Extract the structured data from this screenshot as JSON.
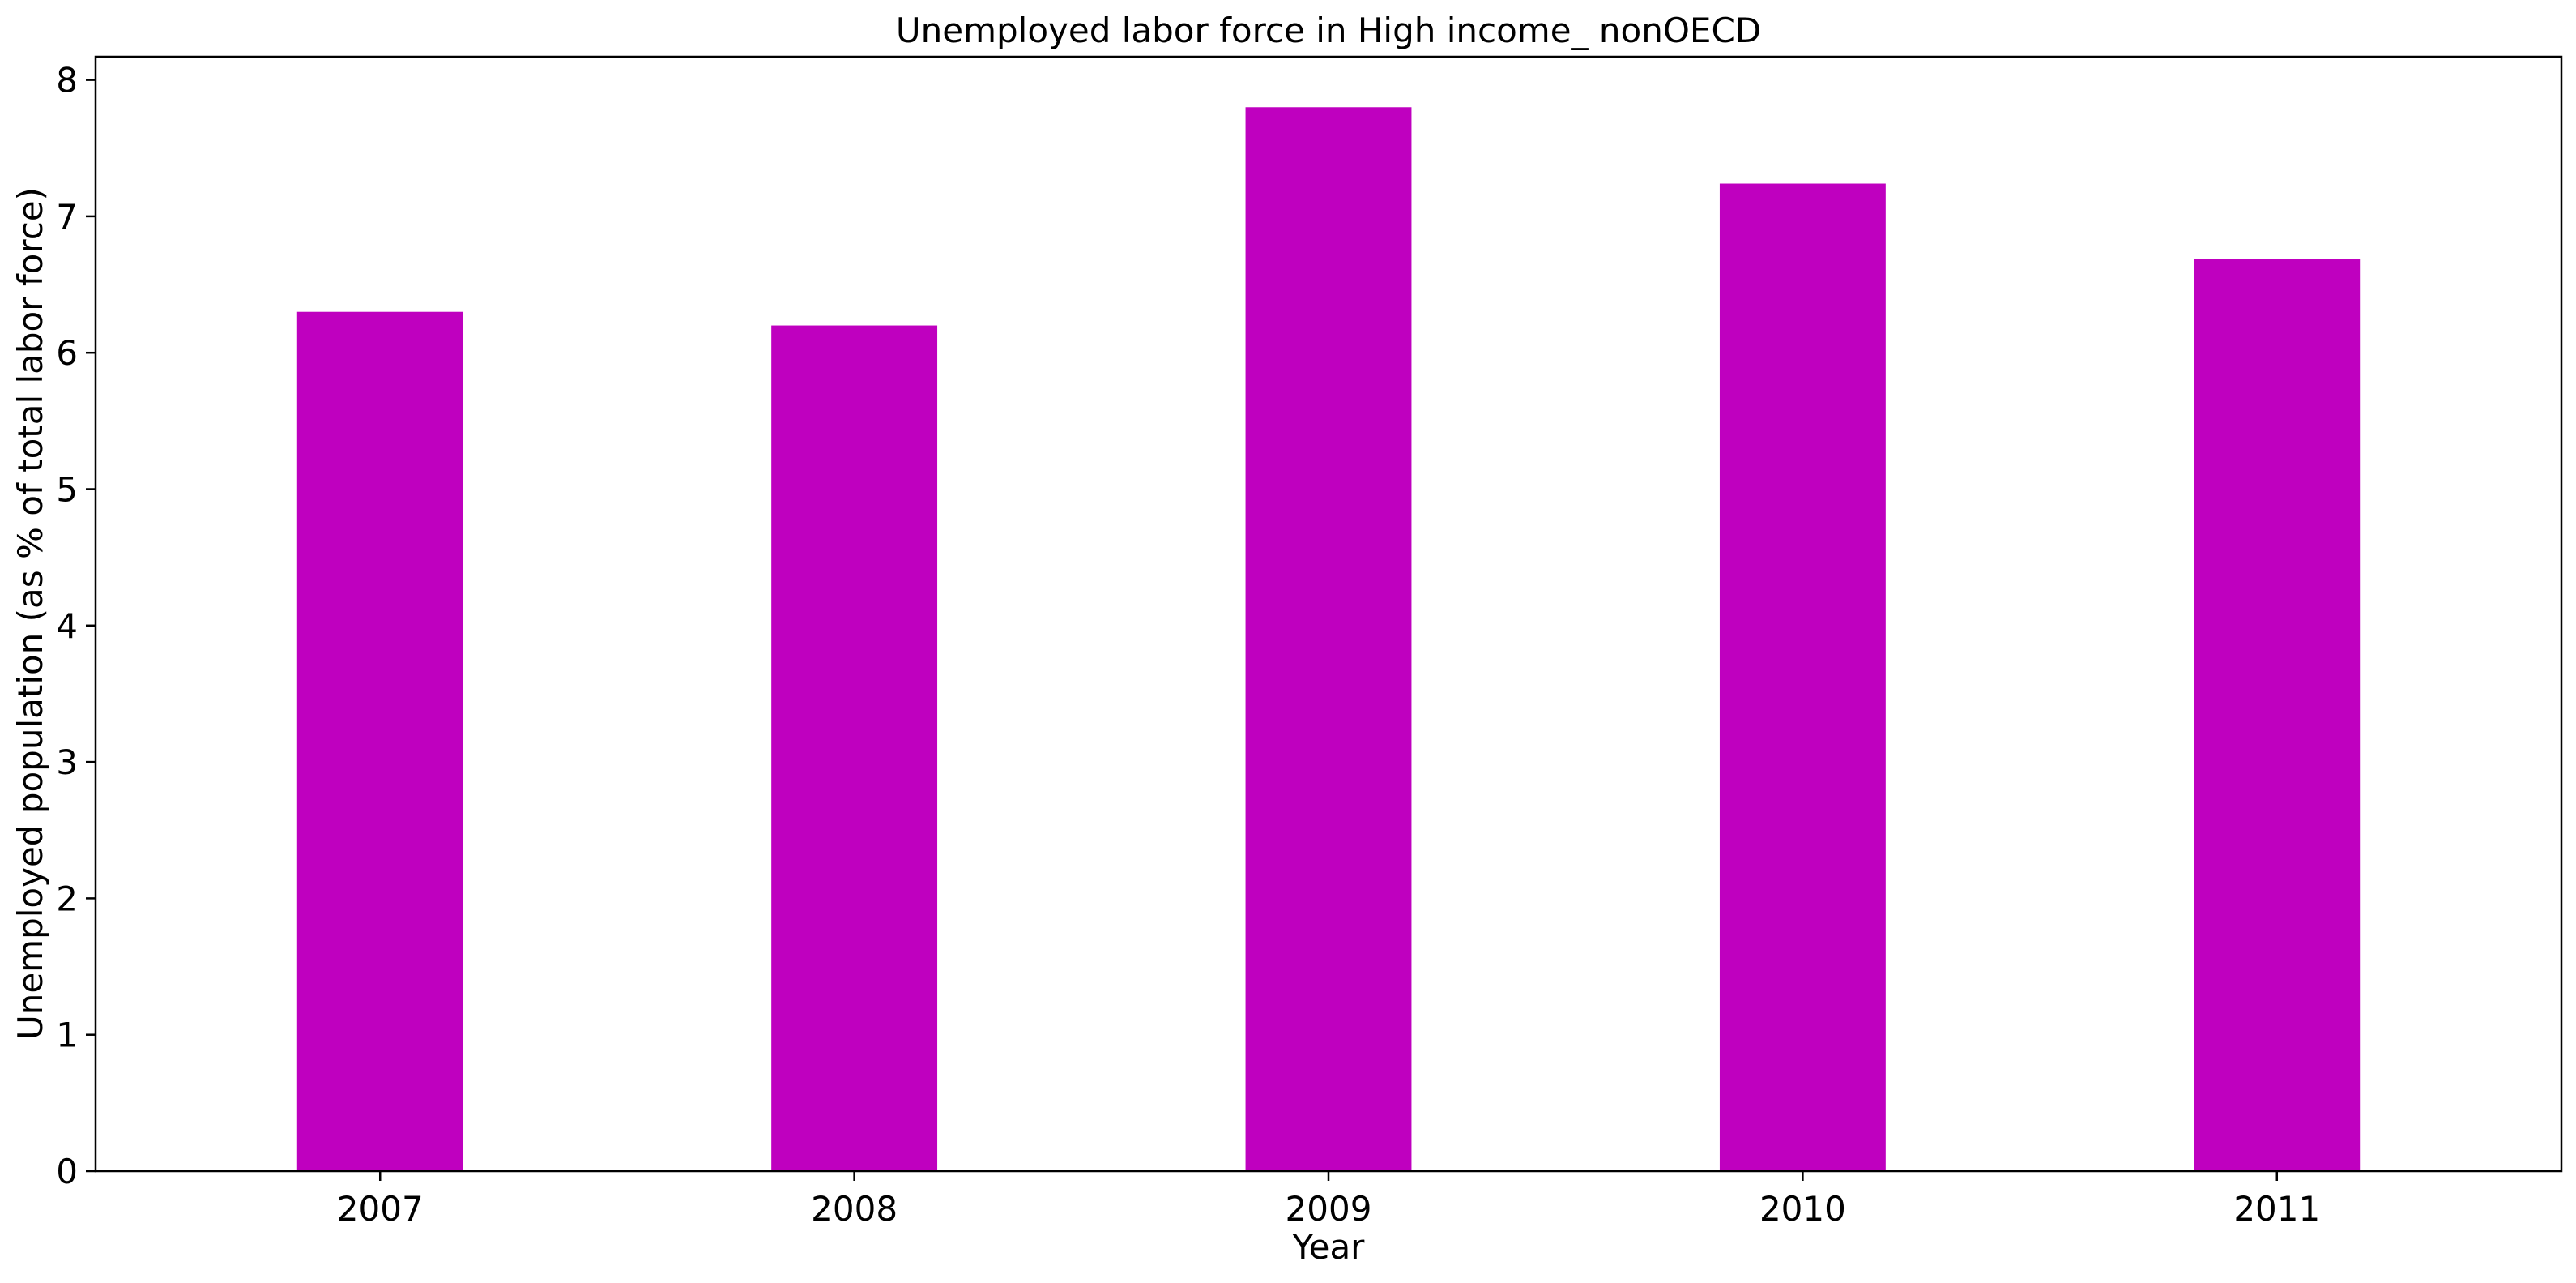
{
  "chart_data": {
    "type": "bar",
    "title": "Unemployed labor force in High income_ nonOECD",
    "xlabel": "Year",
    "ylabel": "Unemployed population (as % of total labor force)",
    "categories": [
      "2007",
      "2008",
      "2009",
      "2010",
      "2011"
    ],
    "values": [
      6.3,
      6.2,
      7.8,
      7.24,
      6.69
    ],
    "ylim": [
      0,
      8.17
    ],
    "yticks": [
      0,
      1,
      2,
      3,
      4,
      5,
      6,
      7,
      8
    ],
    "bar_color": "#bf00bf",
    "grid": false,
    "legend": "none"
  }
}
